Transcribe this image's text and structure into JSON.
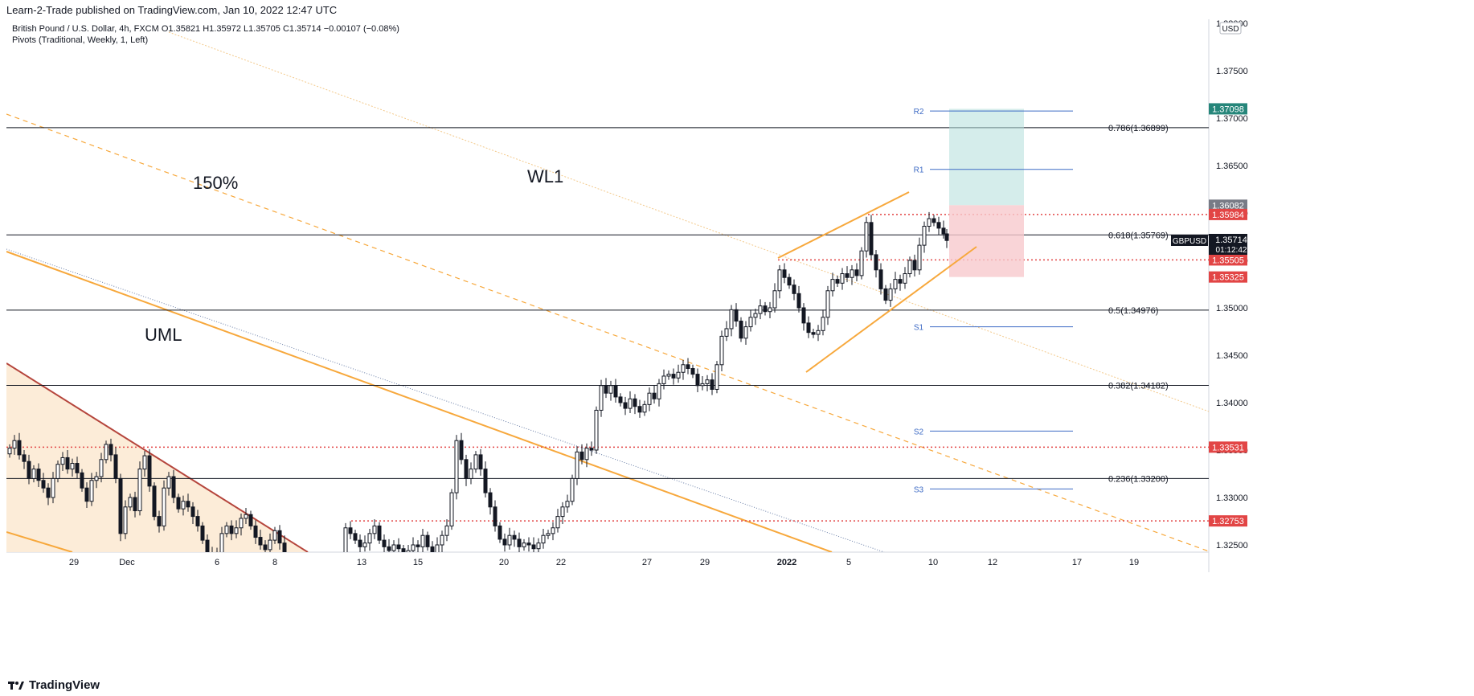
{
  "header": {
    "published": "Learn-2-Trade published on TradingView.com, Jan 10, 2022 12:47 UTC"
  },
  "symbol_line": {
    "name": "British Pound / U.S. Dollar, 4h, FXCM",
    "o": "O1.35821",
    "h": "H1.35972",
    "l": "L1.35705",
    "c": "C1.35714",
    "chg": "−0.00107 (−0.08%)"
  },
  "indicator_line": "Pivots (Traditional, Weekly, 1, Left)",
  "currency": "USD",
  "price_ticks": [
    "1.38000",
    "1.37500",
    "1.37000",
    "1.36500",
    "1.36000",
    "1.35500",
    "1.35000",
    "1.34500",
    "1.34000",
    "1.33500",
    "1.33000",
    "1.32500"
  ],
  "time_ticks": [
    "29",
    "Dec",
    "6",
    "8",
    "13",
    "15",
    "20",
    "22",
    "27",
    "29",
    "2022",
    "5",
    "10",
    "12",
    "17",
    "19"
  ],
  "price_badges": [
    {
      "price": 1.37098,
      "label": "1.37098",
      "color": "#26867a"
    },
    {
      "price": 1.36082,
      "label": "1.36082",
      "color": "#787b86"
    },
    {
      "price": 1.35984,
      "label": "1.35984",
      "color": "#e24545"
    },
    {
      "price": 1.35505,
      "label": "1.35505",
      "color": "#e24545"
    },
    {
      "price": 1.35325,
      "label": "1.35325",
      "color": "#e24545"
    },
    {
      "price": 1.33531,
      "label": "1.33531",
      "color": "#e24545"
    },
    {
      "price": 1.32753,
      "label": "1.32753",
      "color": "#e24545"
    }
  ],
  "last_price": {
    "symbol": "GBPUSD",
    "price": "1.35714",
    "countdown": "01:12:42"
  },
  "fib_levels": [
    {
      "price": 1.36899,
      "label": "0.786(1.36899)"
    },
    {
      "price": 1.35769,
      "label": "0.618(1.35769)"
    },
    {
      "price": 1.34976,
      "label": "0.5(1.34976)"
    },
    {
      "price": 1.34182,
      "label": "0.382(1.34182)"
    },
    {
      "price": 1.332,
      "label": "0.236(1.33200)"
    }
  ],
  "pivots": [
    {
      "label": "R2",
      "price": 1.37075
    },
    {
      "label": "R1",
      "price": 1.3646
    },
    {
      "label": "S1",
      "price": 1.348
    },
    {
      "label": "S2",
      "price": 1.337
    },
    {
      "label": "S3",
      "price": 1.3309
    }
  ],
  "annotations": {
    "pct": "150%",
    "wl1": "WL1",
    "uml": "UML"
  },
  "footer": {
    "brand": "TradingView"
  },
  "colors": {
    "accent_orange": "#f7a83c",
    "tp_zone": "#b2dfdb",
    "sl_zone": "#f8c9cd",
    "pivot_blue": "#3e6bc5"
  },
  "chart_data": {
    "type": "candlestick",
    "title": "British Pound / U.S. Dollar, 4h, FXCM",
    "ylim": [
      1.32375,
      1.38
    ],
    "ylabel": "USD",
    "x_ticks": [
      "29",
      "Dec",
      "6",
      "8",
      "13",
      "15",
      "20",
      "22",
      "27",
      "29",
      "2022",
      "5",
      "10",
      "12",
      "17",
      "19"
    ],
    "series": [
      {
        "name": "GBPUSD",
        "last": 1.35714
      }
    ],
    "horizontal_levels": [
      1.36899,
      1.35769,
      1.34976,
      1.34182,
      1.332
    ],
    "dotted_levels": [
      1.35984,
      1.35505,
      1.33531,
      1.32753
    ],
    "position": {
      "entry": 1.36082,
      "target": 1.37098,
      "stop": 1.35325
    },
    "grid": false,
    "legend": "none"
  }
}
